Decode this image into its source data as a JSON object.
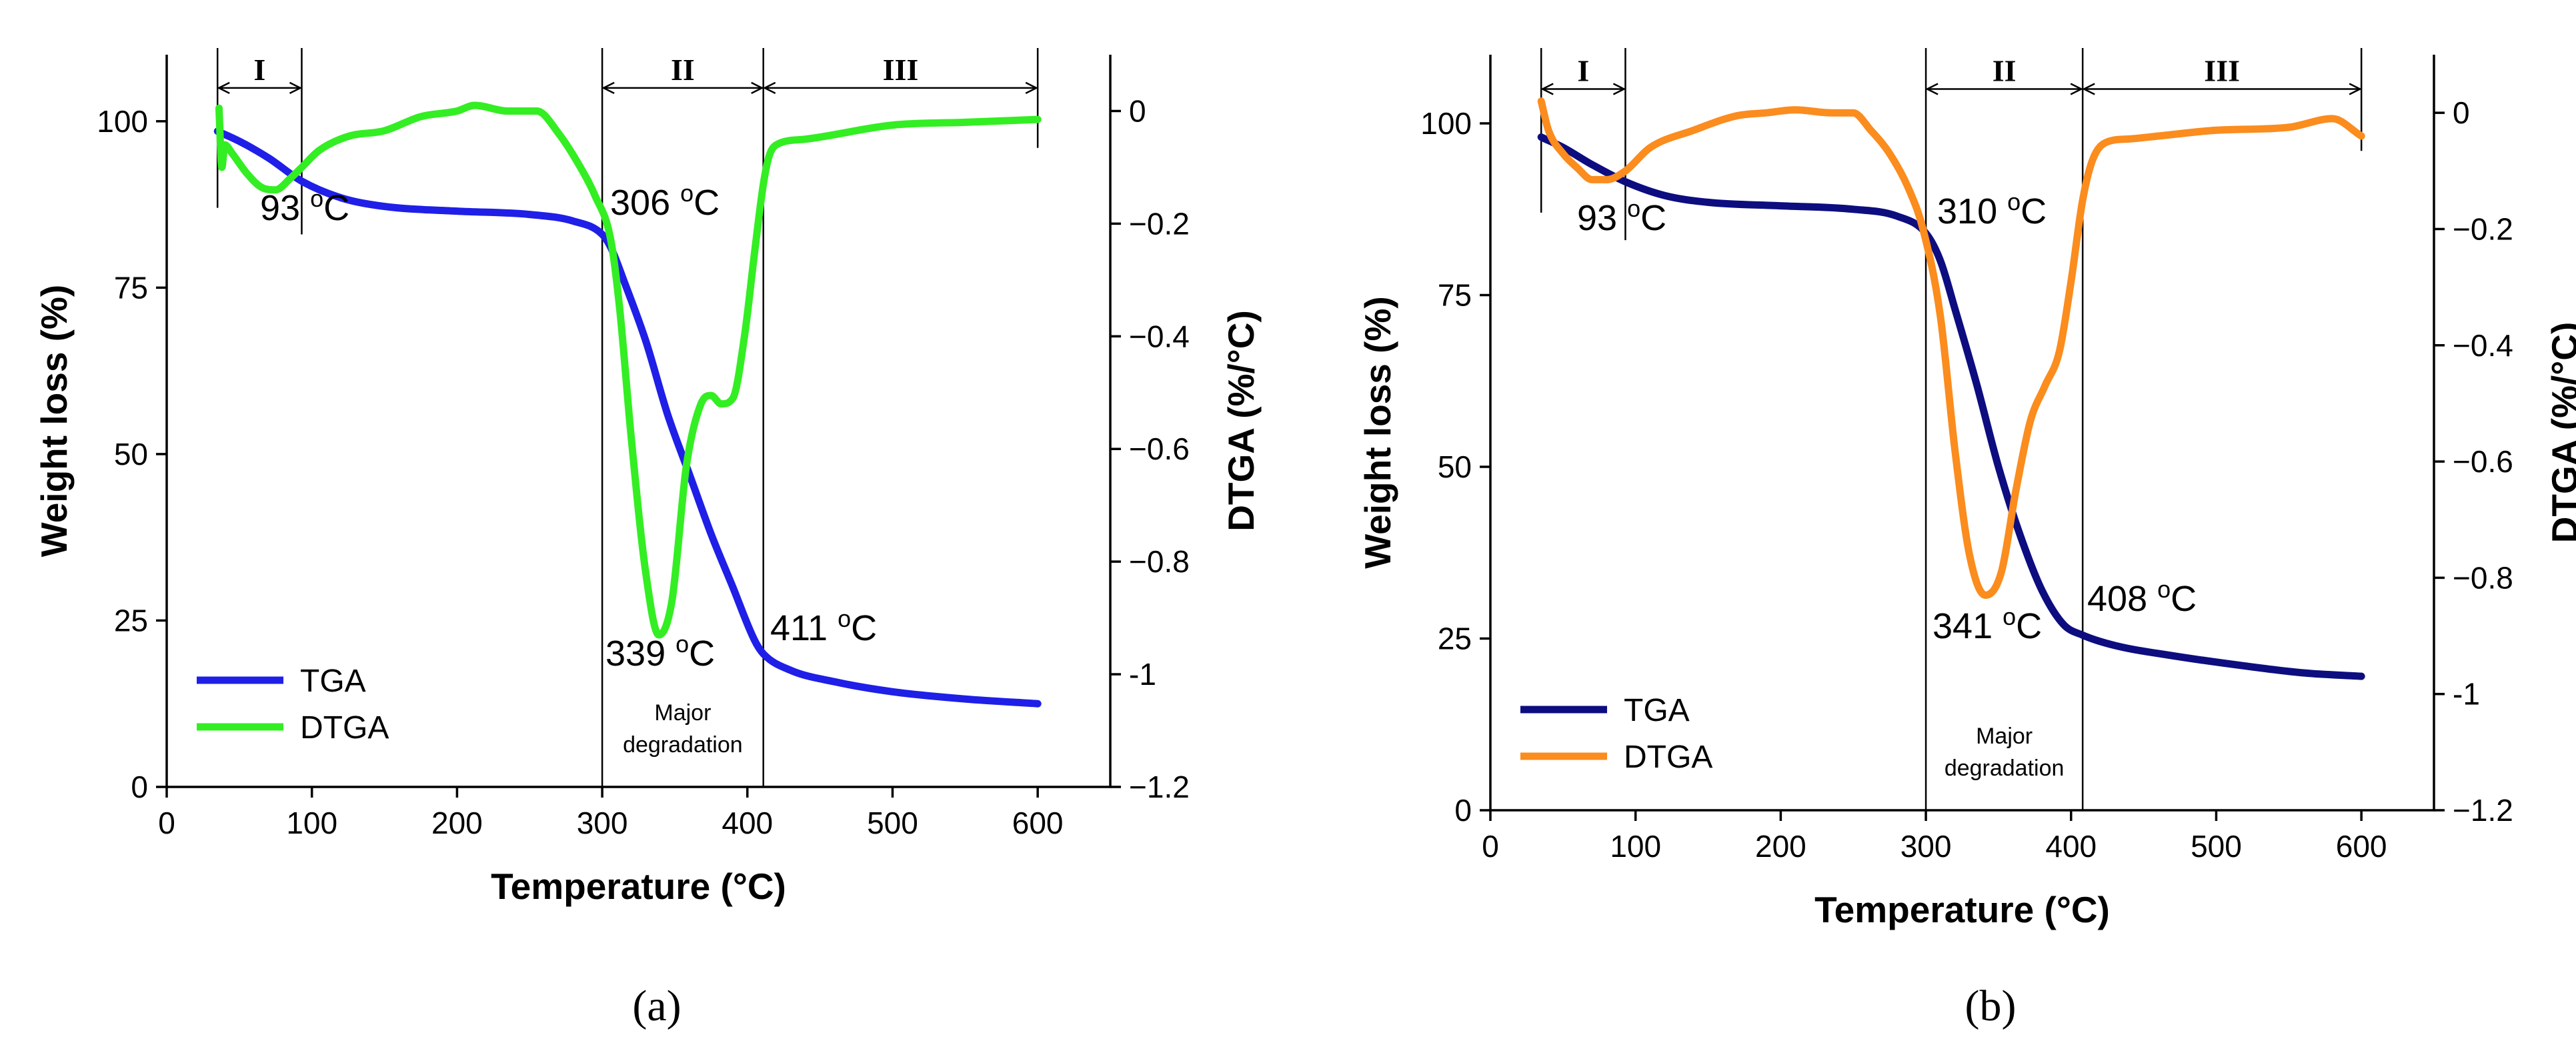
{
  "figure": {
    "panel_labels": [
      "(a)",
      "(b)"
    ]
  },
  "chart_data": [
    {
      "type": "line",
      "panel": "(a)",
      "xlabel": "Temperature (°C)",
      "ylabel": "Weight loss (%)",
      "y2label": "DTGA (%/°C)",
      "xlim": [
        0,
        650
      ],
      "ylim": [
        0,
        110
      ],
      "y2lim": [
        -1.2,
        0.1
      ],
      "xticks": [
        0,
        100,
        200,
        300,
        400,
        500,
        600
      ],
      "yticks": [
        0,
        25,
        50,
        75,
        100
      ],
      "y2ticks": [
        0.0,
        -0.2,
        -0.4,
        -0.6,
        -0.8,
        -1.0,
        -1.2
      ],
      "legend_position": "bottom-left",
      "grid": false,
      "series": [
        {
          "name": "TGA",
          "axis": "left",
          "color": "#1f1fe8",
          "x": [
            35,
            50,
            70,
            93,
            120,
            150,
            200,
            250,
            280,
            300,
            306,
            315,
            330,
            345,
            360,
            375,
            390,
            405,
            411,
            430,
            460,
            500,
            550,
            600
          ],
          "y": [
            98.5,
            97,
            94.5,
            91,
            88.5,
            87.2,
            86.5,
            86,
            85,
            83,
            81,
            76,
            67,
            56,
            47,
            38,
            30,
            22,
            20,
            17.5,
            15.8,
            14.3,
            13.2,
            12.5
          ]
        },
        {
          "name": "DTGA",
          "axis": "right",
          "color": "#33ee22",
          "x": [
            36,
            38,
            40,
            45,
            55,
            65,
            75,
            85,
            93,
            105,
            125,
            150,
            175,
            200,
            212,
            235,
            255,
            270,
            285,
            295,
            306,
            312,
            320,
            330,
            339,
            348,
            358,
            368,
            375,
            382,
            390,
            398,
            405,
            411,
            415,
            420,
            440,
            500,
            550,
            600
          ],
          "y": [
            0.005,
            -0.1,
            -0.06,
            -0.075,
            -0.11,
            -0.135,
            -0.14,
            -0.12,
            -0.1,
            -0.07,
            -0.045,
            -0.035,
            -0.01,
            0.0,
            0.01,
            0.0,
            0.0,
            -0.04,
            -0.1,
            -0.15,
            -0.23,
            -0.35,
            -0.58,
            -0.82,
            -0.93,
            -0.87,
            -0.63,
            -0.52,
            -0.505,
            -0.52,
            -0.51,
            -0.4,
            -0.25,
            -0.13,
            -0.08,
            -0.06,
            -0.05,
            -0.025,
            -0.02,
            -0.015
          ]
        }
      ],
      "annotations": {
        "peak1": {
          "value": "93",
          "unit": "C"
        },
        "onset": {
          "value": "306",
          "unit": "C"
        },
        "peak2": {
          "value": "339",
          "unit": "C"
        },
        "endset": {
          "value": "411",
          "unit": "C"
        },
        "degree_mark": "o",
        "region_note": [
          "Major",
          "degradation"
        ],
        "regions": [
          "I",
          "II",
          "III"
        ]
      },
      "region_bounds": [
        [
          35,
          93
        ],
        [
          300,
          411
        ],
        [
          411,
          600
        ]
      ]
    },
    {
      "type": "line",
      "panel": "(b)",
      "xlabel": "Temperature (°C)",
      "ylabel": "Weight loss (%)",
      "y2label": "DTGA (%/°C)",
      "xlim": [
        0,
        650
      ],
      "ylim": [
        0,
        110
      ],
      "y2lim": [
        -1.2,
        0.1
      ],
      "xticks": [
        0,
        100,
        200,
        300,
        400,
        500,
        600
      ],
      "yticks": [
        0,
        25,
        50,
        75,
        100
      ],
      "y2ticks": [
        0.0,
        -0.2,
        -0.4,
        -0.6,
        -0.8,
        -1.0,
        -1.2
      ],
      "legend_position": "bottom-left",
      "grid": false,
      "series": [
        {
          "name": "TGA",
          "axis": "left",
          "color": "#0d0d80",
          "x": [
            35,
            50,
            70,
            93,
            120,
            150,
            200,
            250,
            280,
            300,
            310,
            320,
            335,
            350,
            365,
            380,
            395,
            408,
            430,
            470,
            520,
            560,
            600
          ],
          "y": [
            98,
            96.5,
            94,
            91.5,
            89.5,
            88.5,
            88,
            87.5,
            86.5,
            84,
            80,
            73,
            62,
            50,
            40,
            32,
            27,
            25.5,
            24,
            22.5,
            21,
            20,
            19.5
          ]
        },
        {
          "name": "DTGA",
          "axis": "right",
          "color": "#fb8c1e",
          "x": [
            35,
            40,
            50,
            60,
            70,
            80,
            93,
            110,
            140,
            170,
            190,
            210,
            235,
            250,
            262,
            275,
            288,
            298,
            310,
            320,
            330,
            341,
            352,
            362,
            372,
            382,
            392,
            400,
            408,
            415,
            425,
            440,
            460,
            500,
            550,
            580,
            600
          ],
          "y": [
            0.02,
            -0.03,
            -0.07,
            -0.095,
            -0.115,
            -0.115,
            -0.1,
            -0.06,
            -0.03,
            -0.005,
            0.0,
            0.005,
            0.0,
            0.0,
            -0.03,
            -0.07,
            -0.13,
            -0.2,
            -0.35,
            -0.58,
            -0.76,
            -0.83,
            -0.79,
            -0.65,
            -0.53,
            -0.47,
            -0.41,
            -0.29,
            -0.15,
            -0.08,
            -0.05,
            -0.045,
            -0.04,
            -0.03,
            -0.025,
            -0.01,
            -0.04
          ]
        }
      ],
      "annotations": {
        "peak1": {
          "value": "93",
          "unit": "C"
        },
        "onset": {
          "value": "310",
          "unit": "C"
        },
        "peak2": {
          "value": "341",
          "unit": "C"
        },
        "endset": {
          "value": "408",
          "unit": "C"
        },
        "degree_mark": "o",
        "region_note": [
          "Major",
          "degradation"
        ],
        "regions": [
          "I",
          "II",
          "III"
        ]
      },
      "region_bounds": [
        [
          35,
          93
        ],
        [
          300,
          408
        ],
        [
          408,
          600
        ]
      ]
    }
  ]
}
